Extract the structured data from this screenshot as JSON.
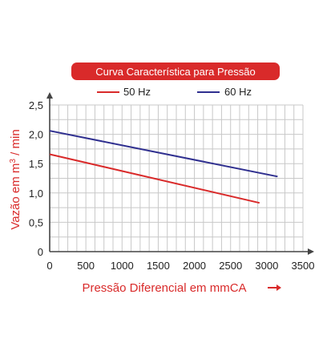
{
  "chart_data": {
    "type": "line",
    "title": "Curva Característica para Pressão",
    "xlabel": "Pressão Diferencial em mmCA",
    "ylabel_main": "Vazão em m",
    "ylabel_sup": "3",
    "ylabel_tail": " / min",
    "xlim": [
      0,
      3500
    ],
    "ylim": [
      0,
      2.5
    ],
    "x_ticks": [
      0,
      500,
      1000,
      1500,
      2000,
      2500,
      3000,
      3500
    ],
    "x_tick_labels": [
      "0",
      "500",
      "1000",
      "1500",
      "2000",
      "2500",
      "3000",
      "3500"
    ],
    "y_ticks": [
      0,
      0.5,
      1.0,
      1.5,
      2.0,
      2.5
    ],
    "y_tick_labels": [
      "0",
      "0,5",
      "1,0",
      "1,5",
      "2,0",
      "2,5"
    ],
    "grid": true,
    "legend_position": "top",
    "series": [
      {
        "name": "50 Hz",
        "color": "#d92a2a",
        "x": [
          0,
          2900
        ],
        "y": [
          1.66,
          0.83
        ]
      },
      {
        "name": "60 Hz",
        "color": "#2f2f8f",
        "x": [
          0,
          3150
        ],
        "y": [
          2.06,
          1.28
        ]
      }
    ],
    "colors": {
      "accent": "#d92a2a",
      "grid": "#c8c8c8",
      "axis": "#444444"
    }
  }
}
